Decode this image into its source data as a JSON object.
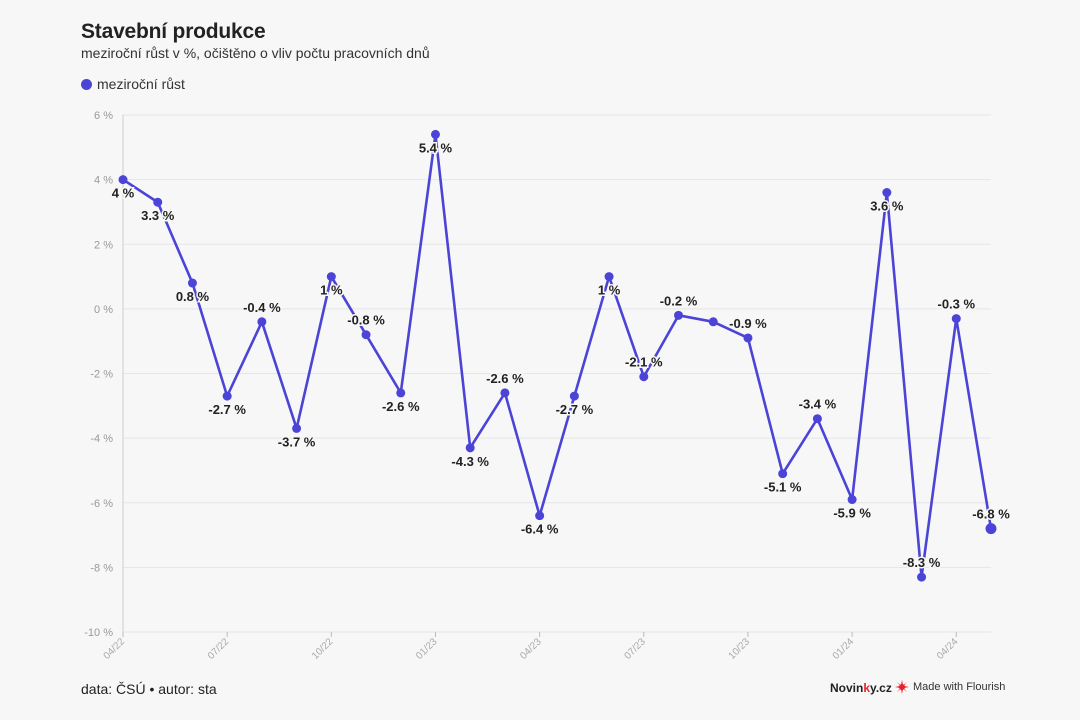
{
  "header": {
    "title": "Stavební produkce",
    "subtitle": "meziroční růst v %, očištěno o vliv počtu pracovních dnů"
  },
  "legend": {
    "label": "meziroční růst",
    "color": "#4b44d6"
  },
  "footer": {
    "source": "data: ČSÚ • autor: sta",
    "brand_pre": "Novin",
    "brand_mid": "k",
    "brand_post": "y.cz",
    "flourish": "Made with Flourish",
    "flourish_icon": "flourish-burst-icon"
  },
  "colors": {
    "line": "#4b44d6",
    "grid": "#e6e6e6",
    "axis": "#999999",
    "label": "#222222"
  },
  "chart_data": {
    "type": "line",
    "title": "Stavební produkce",
    "subtitle": "meziroční růst v %, očištěno o vliv počtu pracovních dnů",
    "xlabel": "",
    "ylabel": "",
    "ylim": [
      -10,
      6
    ],
    "yticks": [
      6,
      4,
      2,
      0,
      -2,
      -4,
      -6,
      -8,
      -10
    ],
    "ytick_labels": [
      "6 %",
      "4 %",
      "2 %",
      "0 %",
      "-2 %",
      "-4 %",
      "-6 %",
      "-8 %",
      "-10 %"
    ],
    "xtick_labels": [
      "04/22",
      "07/22",
      "10/22",
      "01/23",
      "04/23",
      "07/23",
      "10/23",
      "01/24",
      "04/24"
    ],
    "xtick_index": [
      0,
      3,
      6,
      9,
      12,
      15,
      18,
      21,
      24
    ],
    "grid": true,
    "legend_position": "top-left",
    "x": [
      "04/22",
      "05/22",
      "06/22",
      "07/22",
      "08/22",
      "09/22",
      "10/22",
      "11/22",
      "12/22",
      "01/23",
      "02/23",
      "03/23",
      "04/23",
      "05/23",
      "06/23",
      "07/23",
      "08/23",
      "09/23",
      "10/23",
      "11/23",
      "12/23",
      "01/24",
      "02/24",
      "03/24",
      "04/24",
      "05/24"
    ],
    "series": [
      {
        "name": "meziroční růst",
        "values": [
          4.0,
          3.3,
          0.8,
          -2.7,
          -0.4,
          -3.7,
          1.0,
          -0.8,
          -2.6,
          5.4,
          -4.3,
          -2.6,
          -6.4,
          -2.7,
          1.0,
          -2.1,
          -0.2,
          -0.4,
          -0.9,
          -5.1,
          -3.4,
          -5.9,
          3.6,
          -8.3,
          -0.3,
          -6.8
        ],
        "labels": [
          "4 %",
          "3.3 %",
          "0.8 %",
          "-2.7 %",
          "-0.4 %",
          "-3.7 %",
          "1 %",
          "-0.8 %",
          "-2.6 %",
          "5.4 %",
          "-4.3 %",
          "-2.6 %",
          "-6.4 %",
          "-2.7 %",
          "1 %",
          "-2.1 %",
          "-0.2 %",
          "",
          "-0.9 %",
          "-5.1 %",
          "-3.4 %",
          "-5.9 %",
          "3.6 %",
          "-8.3 %",
          "-0.3 %",
          "-6.8 %"
        ],
        "label_position": [
          "below",
          "below",
          "below",
          "below",
          "above",
          "below",
          "below",
          "above",
          "below",
          "below",
          "below",
          "above",
          "below",
          "below",
          "below",
          "above",
          "above",
          "above",
          "above",
          "below",
          "above",
          "below",
          "below",
          "above",
          "above",
          "above"
        ]
      }
    ]
  }
}
